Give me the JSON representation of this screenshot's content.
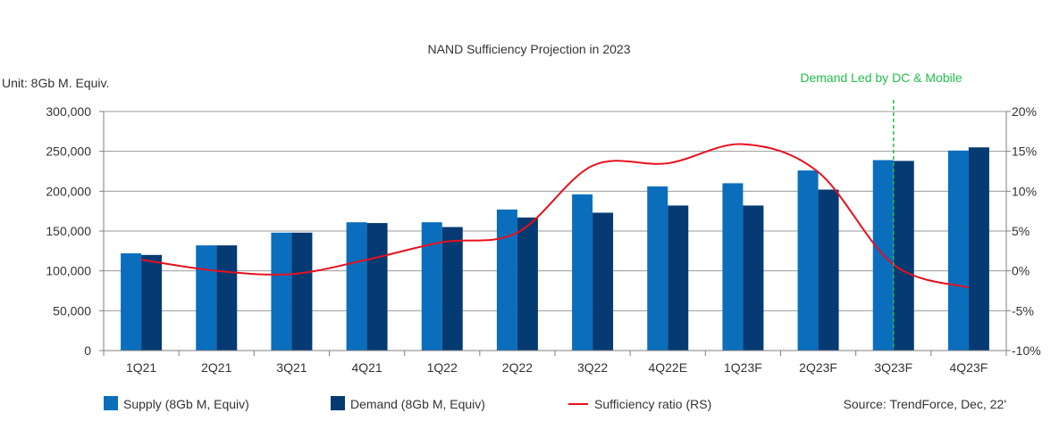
{
  "colors": {
    "supply": "#0a6ebd",
    "demand": "#063a73",
    "ratio": "#e8101d",
    "annotation": "#1fbf4a",
    "grid": "#9a9a9a",
    "axis": "#7f7f7f"
  },
  "chart_data": {
    "type": "bar",
    "title": "NAND Sufficiency Projection in 2023",
    "unit_label": "Unit: 8Gb  M. Equiv.",
    "source": "Source: TrendForce, Dec, 22'",
    "annotation": "Demand Led by DC & Mobile",
    "annotation_after_category": "3Q23F",
    "categories": [
      "1Q21",
      "2Q21",
      "3Q21",
      "4Q21",
      "1Q22",
      "2Q22",
      "3Q22",
      "4Q22E",
      "1Q23F",
      "2Q23F",
      "3Q23F",
      "4Q23F"
    ],
    "ylim": [
      0,
      300000
    ],
    "y_ticks": [
      "0",
      "50,000",
      "100,000",
      "150,000",
      "200,000",
      "250,000",
      "300,000"
    ],
    "y2lim": [
      -10,
      20
    ],
    "y2_ticks": [
      "-10%",
      "-5%",
      "0%",
      "5%",
      "10%",
      "15%",
      "20%"
    ],
    "grid": "horizontal",
    "legend_position": "bottom",
    "series": [
      {
        "name": "Supply (8Gb M, Equiv)",
        "type": "bar",
        "axis": "left",
        "values": [
          122000,
          132000,
          148000,
          161000,
          161000,
          177000,
          196000,
          206000,
          210000,
          226000,
          239000,
          251000
        ]
      },
      {
        "name": "Demand (8Gb M, Equiv)",
        "type": "bar",
        "axis": "left",
        "values": [
          120000,
          132000,
          148000,
          160000,
          155000,
          167000,
          173000,
          182000,
          182000,
          202000,
          238000,
          255000
        ]
      },
      {
        "name": "Sufficiency ratio (RS)",
        "type": "line",
        "axis": "right",
        "values": [
          1.4,
          0.0,
          -0.4,
          1.4,
          3.6,
          4.8,
          13.2,
          13.5,
          15.9,
          12.4,
          0.8,
          -2.1
        ]
      }
    ]
  }
}
